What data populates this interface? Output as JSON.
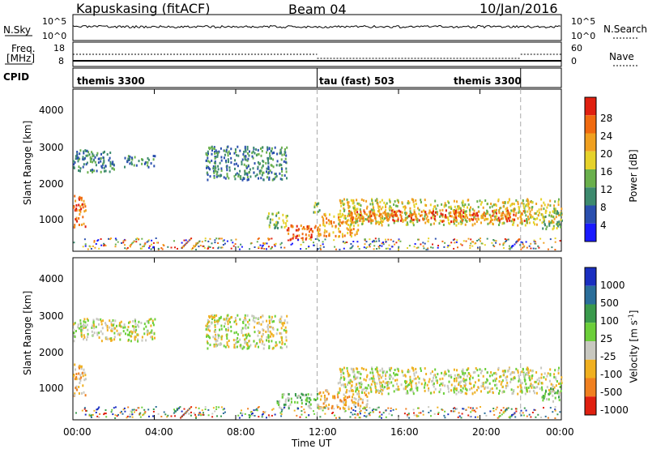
{
  "header": {
    "title": "Kapuskasing (fitACF)",
    "beam": "Beam 04",
    "date": "10/Jan/2016"
  },
  "top_panel": {
    "nsky_label": "N.Sky",
    "left_ticks": [
      "10^5",
      "10^0"
    ],
    "right_ticks": [
      "10^5",
      "10^0"
    ],
    "nsearch_label": "N.Search"
  },
  "freq_panel": {
    "freq_label": "Freq.",
    "freq_unit": "[MHz]",
    "left_ticks": [
      "18",
      "8"
    ],
    "right_ticks": [
      "60",
      "0"
    ],
    "nave_label": "Nave"
  },
  "cpid_panel": {
    "label": "CPID",
    "modes": [
      {
        "name": "themis 3300",
        "start_hour": 0
      },
      {
        "name": "tau (fast) 503",
        "start_hour": 12
      },
      {
        "name": "themis 3300",
        "start_hour": 22
      }
    ],
    "mode_labels": [
      "themis 3300",
      "tau (fast) 503",
      "themis 3300"
    ]
  },
  "power_panel": {
    "ylabel": "Slant Range [km]",
    "y_ticks": [
      "1000",
      "2000",
      "3000",
      "4000"
    ],
    "colorbar_label": "Power [dB]",
    "colorbar_ticks": [
      "4",
      "8",
      "12",
      "16",
      "20",
      "24",
      "28"
    ],
    "colors": [
      "#1a1aff",
      "#2a4fae",
      "#3d8a6e",
      "#6ab04c",
      "#e6d22a",
      "#f0a020",
      "#f06a10",
      "#e02010"
    ]
  },
  "velocity_panel": {
    "ylabel": "Slant Range [km]",
    "y_ticks": [
      "1000",
      "2000",
      "3000",
      "4000"
    ],
    "colorbar_label": "Velocity [m s",
    "colorbar_sup": "-1",
    "colorbar_close": "]",
    "colorbar_ticks": [
      "1000",
      "500",
      "100",
      "25",
      "-25",
      "-100",
      "-500",
      "-1000"
    ],
    "colors": [
      "#1a2fc0",
      "#2a6e9a",
      "#3a9a4c",
      "#6ccf3a",
      "#c8c8c0",
      "#f0b020",
      "#f08020",
      "#e02010"
    ]
  },
  "x_axis": {
    "ticks": [
      "00:00",
      "04:00",
      "08:00",
      "12:00",
      "16:00",
      "20:00",
      "00:00"
    ],
    "label": "Time UT"
  },
  "chart_data": {
    "type": "heatmap",
    "x_range_hours": [
      0,
      24
    ],
    "y_range_km": [
      180,
      4500
    ],
    "markers_hours": [
      12,
      22
    ],
    "power_regions": [
      {
        "t0": 0.0,
        "t1": 0.6,
        "r0": 800,
        "r1": 1700,
        "level": 6
      },
      {
        "t0": 0.0,
        "t1": 2.0,
        "r0": 2300,
        "r1": 2900,
        "level": 2
      },
      {
        "t0": 2.5,
        "t1": 4.0,
        "r0": 2450,
        "r1": 2750,
        "level": 2
      },
      {
        "t0": 6.5,
        "t1": 10.5,
        "r0": 2100,
        "r1": 3000,
        "level": 2
      },
      {
        "t0": 9.5,
        "t1": 10.5,
        "r0": 800,
        "r1": 1250,
        "level": 3
      },
      {
        "t0": 10.5,
        "t1": 12.0,
        "r0": 500,
        "r1": 900,
        "level": 6
      },
      {
        "t0": 11.8,
        "t1": 12.1,
        "r0": 1000,
        "r1": 1500,
        "level": 3
      },
      {
        "t0": 12.0,
        "t1": 14.0,
        "r0": 600,
        "r1": 1200,
        "level": 5
      },
      {
        "t0": 13.0,
        "t1": 24.0,
        "r0": 900,
        "r1": 1600,
        "level": 4
      },
      {
        "t0": 13.5,
        "t1": 22.5,
        "r0": 1000,
        "r1": 1300,
        "level": 6
      },
      {
        "t0": 23.0,
        "t1": 24.0,
        "r0": 800,
        "r1": 1300,
        "level": 3
      }
    ],
    "velocity_regions": [
      {
        "t0": 0.0,
        "t1": 0.6,
        "r0": 800,
        "r1": 1700,
        "level": 5
      },
      {
        "t0": 0.0,
        "t1": 4.0,
        "r0": 2300,
        "r1": 2900,
        "level": 4
      },
      {
        "t0": 6.5,
        "t1": 10.5,
        "r0": 2100,
        "r1": 3000,
        "level": 4
      },
      {
        "t0": 10.0,
        "t1": 12.0,
        "r0": 500,
        "r1": 900,
        "level": 3
      },
      {
        "t0": 12.0,
        "t1": 14.5,
        "r0": 500,
        "r1": 1000,
        "level": 5
      },
      {
        "t0": 13.0,
        "t1": 24.0,
        "r0": 900,
        "r1": 1600,
        "level": 4
      },
      {
        "t0": 23.0,
        "t1": 24.0,
        "r0": 700,
        "r1": 1100,
        "level": 3
      }
    ]
  }
}
